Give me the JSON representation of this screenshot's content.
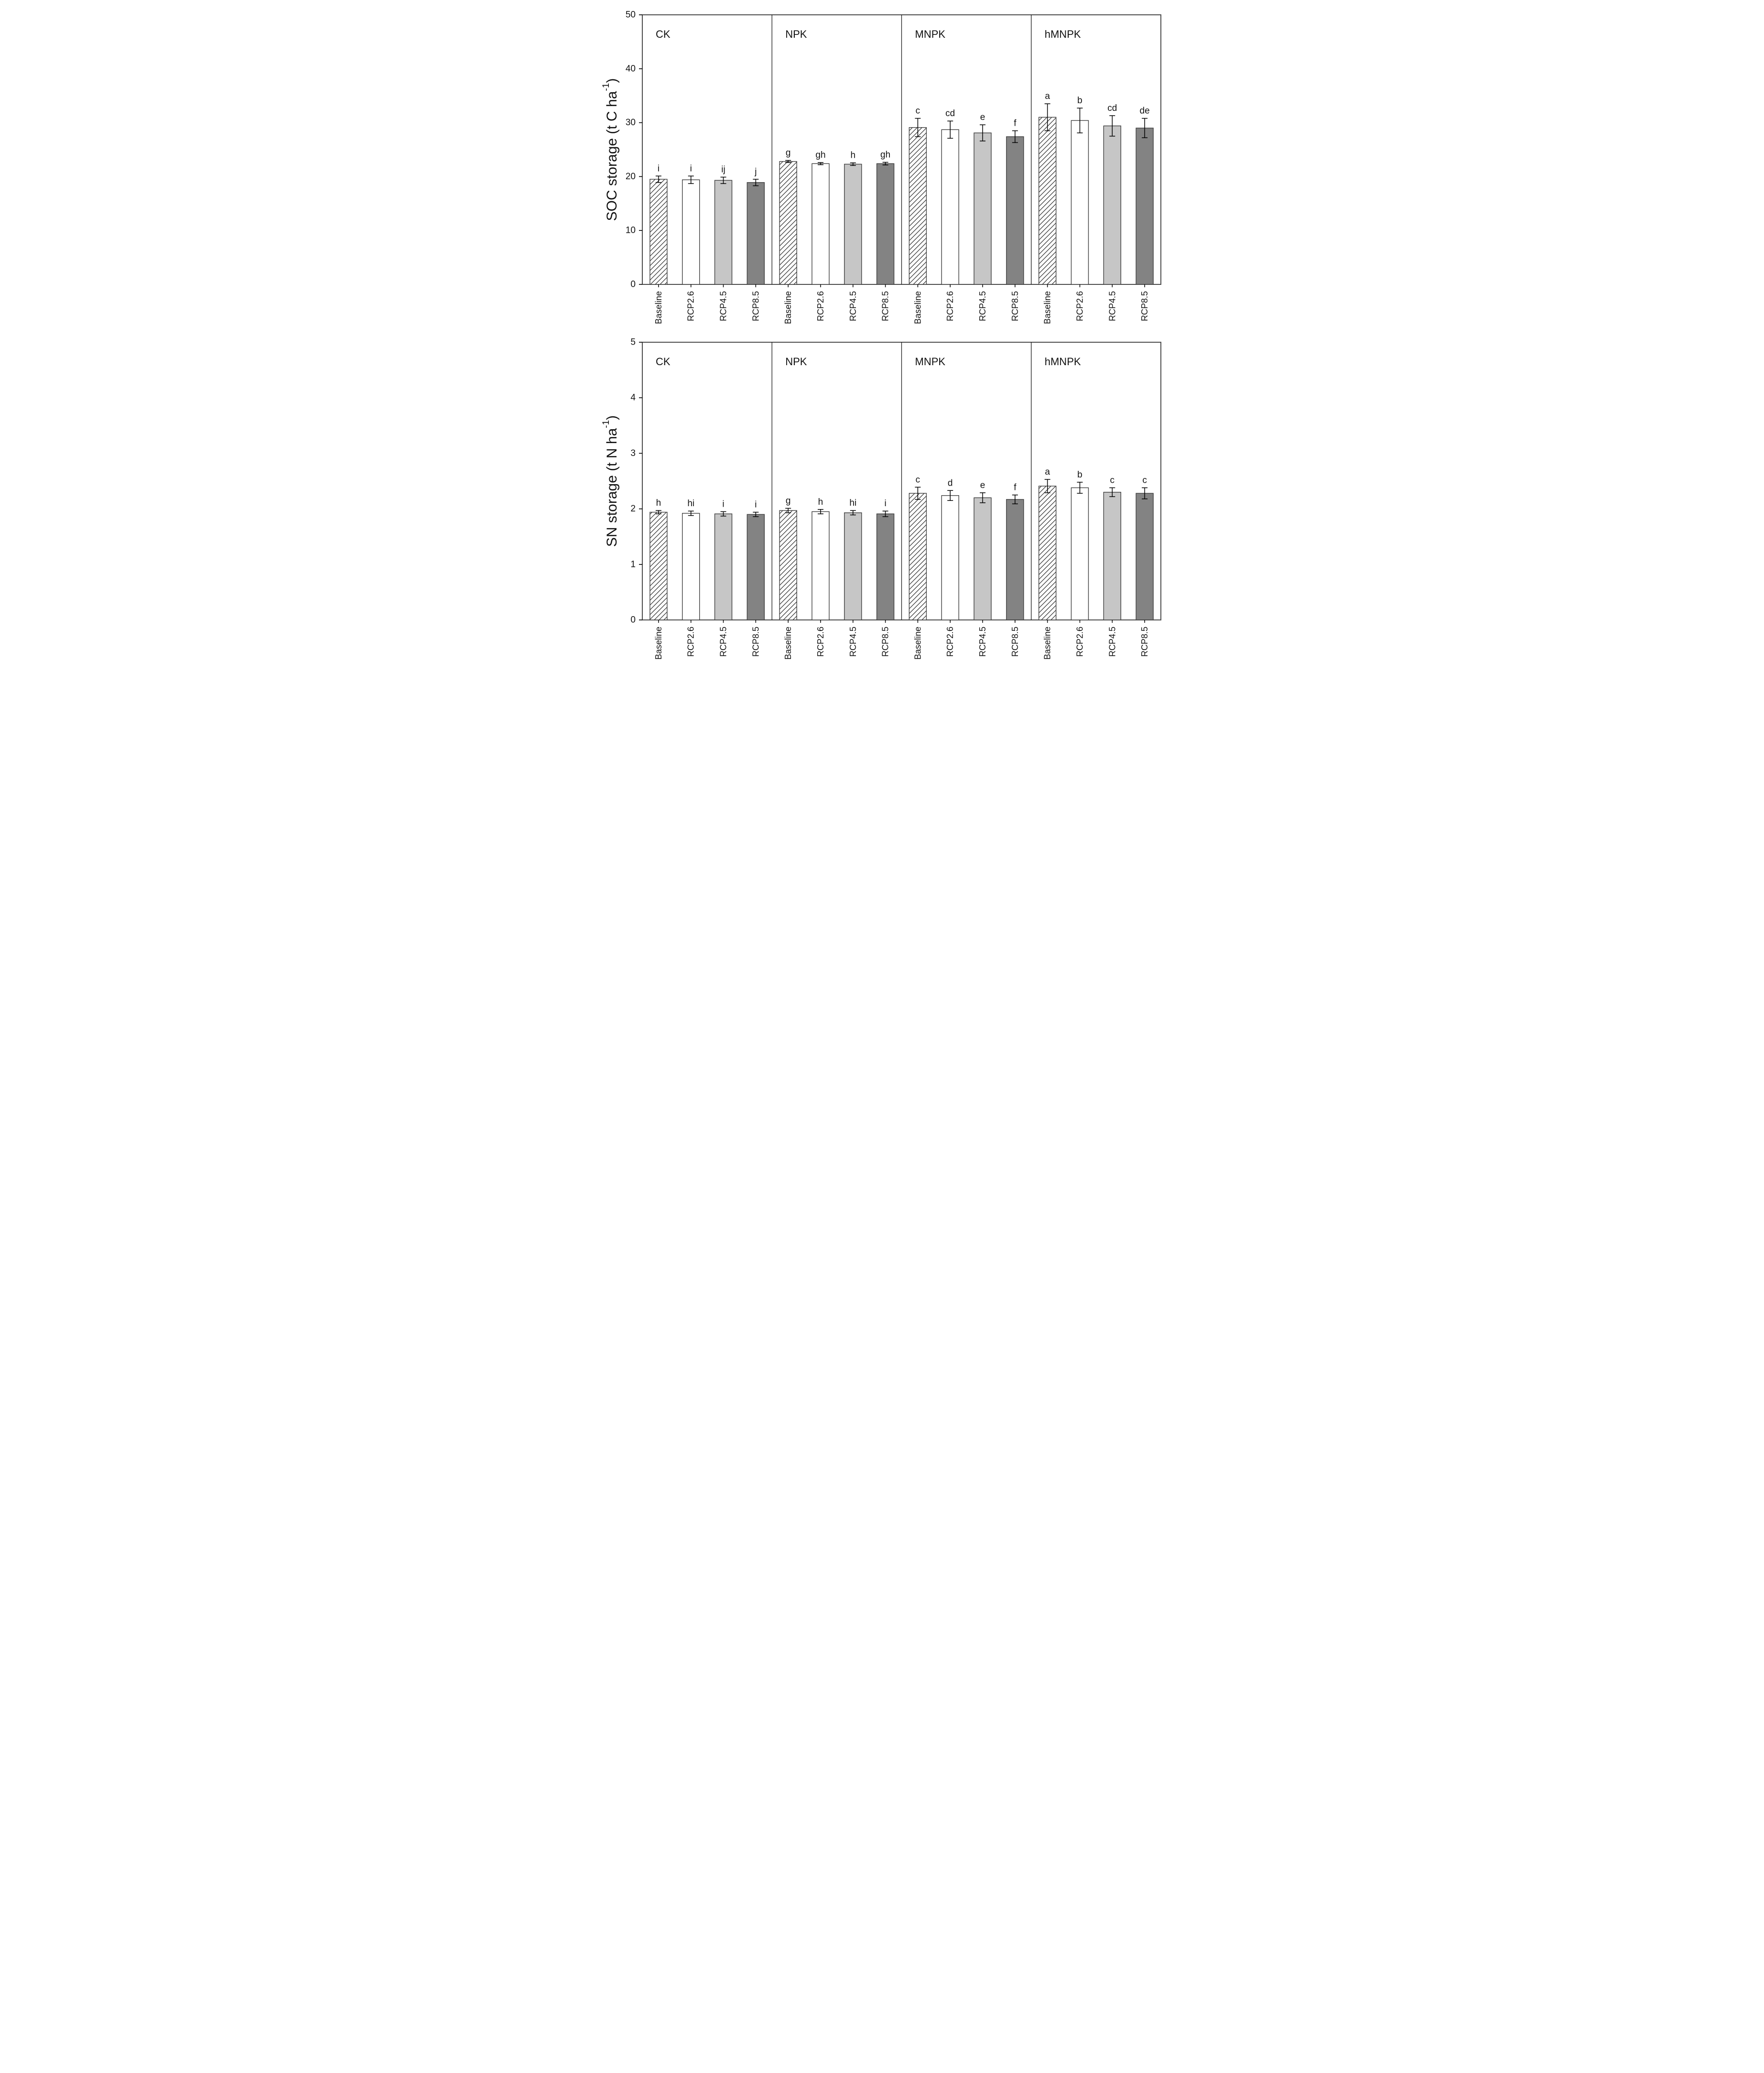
{
  "figure": {
    "description": "Two stacked bar-chart panels of soil storage under fertilization treatments and climate scenarios",
    "background": "#ffffff",
    "panel_titles": [
      "CK",
      "NPK",
      "MNPK",
      "hMNPK"
    ],
    "series_fills": {
      "Baseline": "hatch",
      "RCP2.6": "#ffffff",
      "RCP4.5": "#c6c6c6",
      "RCP8.5": "#838383"
    },
    "bar_border_color": "#3f3f3f",
    "axis_color": "#4d4d4d",
    "error_bar_color": "#000000",
    "hatch_line_color": "#2b2b2b"
  },
  "chart_data": [
    {
      "type": "bar",
      "title": "",
      "ylabel": "SOC storage (t C ha⁻¹)",
      "ylabel_main": "SOC storage (t C ha",
      "ylabel_sup": "-1",
      "ylabel_end": ")",
      "ylim": [
        0,
        50
      ],
      "yticks": [
        0,
        10,
        20,
        30,
        40,
        50
      ],
      "grid": "off",
      "legend": "none",
      "categories": [
        "Baseline",
        "RCP2.6",
        "RCP4.5",
        "RCP8.5"
      ],
      "groups": [
        {
          "label": "CK",
          "values": [
            19.5,
            19.4,
            19.3,
            18.9
          ],
          "errors": [
            0.6,
            0.7,
            0.6,
            0.6
          ],
          "letters": [
            "i",
            "i",
            "ij",
            "j"
          ]
        },
        {
          "label": "NPK",
          "values": [
            22.8,
            22.4,
            22.3,
            22.4
          ],
          "errors": [
            0.2,
            0.2,
            0.25,
            0.25
          ],
          "letters": [
            "g",
            "gh",
            "h",
            "gh"
          ]
        },
        {
          "label": "MNPK",
          "values": [
            29.1,
            28.7,
            28.1,
            27.4
          ],
          "errors": [
            1.7,
            1.6,
            1.5,
            1.1
          ],
          "letters": [
            "c",
            "cd",
            "e",
            "f"
          ]
        },
        {
          "label": "hMNPK",
          "values": [
            31.0,
            30.4,
            29.4,
            29.0
          ],
          "errors": [
            2.5,
            2.3,
            1.9,
            1.8
          ],
          "letters": [
            "a",
            "b",
            "cd",
            "de"
          ]
        }
      ]
    },
    {
      "type": "bar",
      "title": "",
      "ylabel": "SN storage (t N ha⁻¹)",
      "ylabel_main": "SN storage (t N ha",
      "ylabel_sup": "-1",
      "ylabel_end": ")",
      "ylim": [
        0,
        5
      ],
      "yticks": [
        0,
        1,
        2,
        3,
        4,
        5
      ],
      "grid": "off",
      "legend": "none",
      "categories": [
        "Baseline",
        "RCP2.6",
        "RCP4.5",
        "RCP8.5"
      ],
      "groups": [
        {
          "label": "CK",
          "values": [
            1.94,
            1.92,
            1.91,
            1.9
          ],
          "errors": [
            0.03,
            0.04,
            0.04,
            0.04
          ],
          "letters": [
            "h",
            "hi",
            "i",
            "i"
          ]
        },
        {
          "label": "NPK",
          "values": [
            1.97,
            1.95,
            1.93,
            1.91
          ],
          "errors": [
            0.04,
            0.04,
            0.04,
            0.05
          ],
          "letters": [
            "g",
            "h",
            "hi",
            "i"
          ]
        },
        {
          "label": "MNPK",
          "values": [
            2.28,
            2.24,
            2.2,
            2.17
          ],
          "errors": [
            0.11,
            0.09,
            0.09,
            0.08
          ],
          "letters": [
            "c",
            "d",
            "e",
            "f"
          ]
        },
        {
          "label": "hMNPK",
          "values": [
            2.41,
            2.38,
            2.3,
            2.28
          ],
          "errors": [
            0.12,
            0.1,
            0.08,
            0.1
          ],
          "letters": [
            "a",
            "b",
            "c",
            "c"
          ]
        }
      ]
    }
  ]
}
